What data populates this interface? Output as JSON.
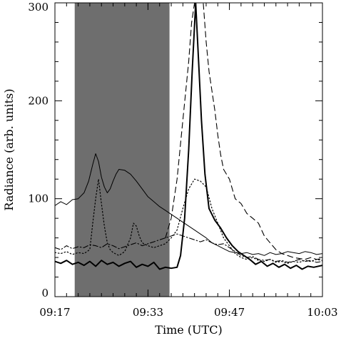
{
  "chart_data": {
    "type": "line",
    "xlabel": "Time (UTC)",
    "ylabel": "Radiance (arb. units)",
    "x_unit": "minutes after 09:17",
    "xlim": [
      0,
      46
    ],
    "ylim": [
      0,
      300
    ],
    "x_ticks": [
      {
        "value": 0,
        "label": "09:17"
      },
      {
        "value": 16,
        "label": "09:33"
      },
      {
        "value": 30,
        "label": "09:47"
      },
      {
        "value": 46,
        "label": "10:03"
      }
    ],
    "y_ticks": [
      {
        "value": 0,
        "label": "0"
      },
      {
        "value": 100,
        "label": "100"
      },
      {
        "value": 200,
        "label": "200"
      },
      {
        "value": 300,
        "label": "300"
      }
    ],
    "shaded_region": {
      "x_start": 3.4,
      "x_end": 19.7,
      "color": "#6e6e6e"
    },
    "series": [
      {
        "style": "solid-thin",
        "points": [
          [
            0,
            93
          ],
          [
            1,
            97
          ],
          [
            2,
            94
          ],
          [
            3,
            99
          ],
          [
            4,
            100
          ],
          [
            5,
            106
          ],
          [
            5.8,
            118
          ],
          [
            6.5,
            135
          ],
          [
            7,
            146
          ],
          [
            7.5,
            138
          ],
          [
            8,
            122
          ],
          [
            8.5,
            112
          ],
          [
            9,
            106
          ],
          [
            9.5,
            110
          ],
          [
            10,
            118
          ],
          [
            10.5,
            125
          ],
          [
            11,
            130
          ],
          [
            12,
            129
          ],
          [
            13,
            125
          ],
          [
            14,
            118
          ],
          [
            15,
            110
          ],
          [
            16,
            102
          ],
          [
            17,
            97
          ],
          [
            18,
            92
          ],
          [
            19,
            88
          ],
          [
            20,
            84
          ],
          [
            21,
            80
          ],
          [
            22,
            76
          ],
          [
            23,
            72
          ],
          [
            24,
            68
          ],
          [
            25,
            64
          ],
          [
            26,
            60
          ],
          [
            27,
            55
          ],
          [
            28,
            52
          ],
          [
            29,
            49
          ],
          [
            30,
            46
          ],
          [
            31,
            45
          ],
          [
            32,
            44
          ],
          [
            33,
            45
          ],
          [
            34,
            43
          ],
          [
            35,
            44
          ],
          [
            36,
            42
          ],
          [
            37,
            45
          ],
          [
            38,
            43
          ],
          [
            39,
            44
          ],
          [
            40,
            46
          ],
          [
            41,
            45
          ],
          [
            42,
            44
          ],
          [
            43,
            46
          ],
          [
            44,
            45
          ],
          [
            45,
            43
          ],
          [
            46,
            44
          ]
        ]
      },
      {
        "style": "solid-thick",
        "points": [
          [
            0,
            36
          ],
          [
            1,
            34
          ],
          [
            2,
            37
          ],
          [
            3,
            33
          ],
          [
            4,
            35
          ],
          [
            5,
            32
          ],
          [
            6,
            36
          ],
          [
            7,
            31
          ],
          [
            8,
            37
          ],
          [
            9,
            33
          ],
          [
            10,
            35
          ],
          [
            11,
            31
          ],
          [
            12,
            34
          ],
          [
            13,
            36
          ],
          [
            14,
            30
          ],
          [
            15,
            33
          ],
          [
            16,
            31
          ],
          [
            17,
            35
          ],
          [
            18,
            28
          ],
          [
            19,
            30
          ],
          [
            20,
            29
          ],
          [
            21,
            30
          ],
          [
            21.6,
            42
          ],
          [
            22.3,
            80
          ],
          [
            23,
            150
          ],
          [
            23.6,
            230
          ],
          [
            24.2,
            300
          ],
          [
            24.7,
            240
          ],
          [
            25.2,
            180
          ],
          [
            25.8,
            125
          ],
          [
            26.5,
            90
          ],
          [
            27.5,
            78
          ],
          [
            28.5,
            70
          ],
          [
            29.5,
            60
          ],
          [
            30.5,
            52
          ],
          [
            31.5,
            46
          ],
          [
            32.5,
            42
          ],
          [
            33.5,
            38
          ],
          [
            34.5,
            33
          ],
          [
            35.5,
            36
          ],
          [
            36.5,
            31
          ],
          [
            37.5,
            34
          ],
          [
            38.5,
            30
          ],
          [
            39.5,
            33
          ],
          [
            40.5,
            29
          ],
          [
            41.5,
            32
          ],
          [
            42.5,
            28
          ],
          [
            43.5,
            31
          ],
          [
            44.5,
            30
          ],
          [
            46,
            32
          ]
        ]
      },
      {
        "style": "dotted",
        "points": [
          [
            0,
            45
          ],
          [
            1,
            44
          ],
          [
            2,
            46
          ],
          [
            3,
            43
          ],
          [
            4,
            45
          ],
          [
            5,
            44
          ],
          [
            6,
            48
          ],
          [
            6.5,
            75
          ],
          [
            7,
            100
          ],
          [
            7.5,
            120
          ],
          [
            8,
            95
          ],
          [
            8.5,
            72
          ],
          [
            9,
            55
          ],
          [
            9.5,
            48
          ],
          [
            10,
            45
          ],
          [
            11,
            42
          ],
          [
            12,
            46
          ],
          [
            13,
            60
          ],
          [
            13.5,
            75
          ],
          [
            14,
            72
          ],
          [
            14.5,
            62
          ],
          [
            15,
            55
          ],
          [
            16,
            52
          ],
          [
            17,
            50
          ],
          [
            18,
            52
          ],
          [
            19,
            54
          ],
          [
            20,
            60
          ],
          [
            21,
            68
          ],
          [
            22,
            90
          ],
          [
            23,
            110
          ],
          [
            24,
            120
          ],
          [
            25,
            118
          ],
          [
            26,
            112
          ],
          [
            27,
            90
          ],
          [
            28,
            75
          ],
          [
            29,
            60
          ],
          [
            30,
            52
          ],
          [
            31,
            44
          ],
          [
            32,
            40
          ],
          [
            33,
            38
          ],
          [
            34,
            40
          ],
          [
            35,
            37
          ],
          [
            36,
            36
          ],
          [
            37,
            38
          ],
          [
            38,
            35
          ],
          [
            39,
            36
          ],
          [
            40,
            34
          ],
          [
            41,
            36
          ],
          [
            42,
            35
          ],
          [
            43,
            37
          ],
          [
            44,
            36
          ],
          [
            45,
            38
          ],
          [
            46,
            37
          ]
        ]
      },
      {
        "style": "dash-dot",
        "points": [
          [
            0,
            50
          ],
          [
            1,
            48
          ],
          [
            2,
            52
          ],
          [
            3,
            49
          ],
          [
            4,
            51
          ],
          [
            5,
            50
          ],
          [
            6,
            53
          ],
          [
            7,
            52
          ],
          [
            8,
            50
          ],
          [
            9,
            54
          ],
          [
            10,
            52
          ],
          [
            11,
            49
          ],
          [
            12,
            51
          ],
          [
            13,
            53
          ],
          [
            14,
            55
          ],
          [
            15,
            52
          ],
          [
            16,
            54
          ],
          [
            17,
            56
          ],
          [
            18,
            58
          ],
          [
            19,
            60
          ],
          [
            20,
            62
          ],
          [
            21,
            64
          ],
          [
            22,
            62
          ],
          [
            23,
            60
          ],
          [
            24,
            58
          ],
          [
            25,
            56
          ],
          [
            26,
            58
          ],
          [
            27,
            55
          ],
          [
            28,
            53
          ],
          [
            29,
            54
          ],
          [
            30,
            50
          ],
          [
            31,
            46
          ],
          [
            32,
            42
          ],
          [
            33,
            40
          ],
          [
            34,
            41
          ],
          [
            35,
            38
          ],
          [
            36,
            37
          ],
          [
            37,
            38
          ],
          [
            38,
            36
          ],
          [
            39,
            37
          ],
          [
            40,
            35
          ],
          [
            41,
            36
          ],
          [
            42,
            38
          ],
          [
            43,
            36
          ],
          [
            44,
            37
          ],
          [
            45,
            35
          ],
          [
            46,
            36
          ]
        ]
      },
      {
        "style": "dashed",
        "points": [
          [
            19,
            60
          ],
          [
            20,
            80
          ],
          [
            21,
            120
          ],
          [
            22,
            180
          ],
          [
            23,
            240
          ],
          [
            23.5,
            280
          ],
          [
            24,
            300
          ],
          [
            24.5,
            310
          ],
          [
            25.5,
            300
          ],
          [
            26,
            260
          ],
          [
            26.5,
            230
          ],
          [
            27,
            210
          ],
          [
            27.5,
            190
          ],
          [
            28,
            165
          ],
          [
            28.5,
            145
          ],
          [
            29,
            130
          ],
          [
            30,
            120
          ],
          [
            30.5,
            110
          ],
          [
            31,
            100
          ],
          [
            32,
            95
          ],
          [
            33,
            85
          ],
          [
            34,
            80
          ],
          [
            35,
            75
          ],
          [
            36,
            62
          ],
          [
            37,
            55
          ],
          [
            38,
            48
          ],
          [
            39,
            44
          ],
          [
            40,
            42
          ],
          [
            41,
            40
          ],
          [
            42,
            39
          ],
          [
            43,
            38
          ],
          [
            44,
            40
          ],
          [
            45,
            38
          ],
          [
            46,
            39
          ]
        ]
      }
    ]
  }
}
